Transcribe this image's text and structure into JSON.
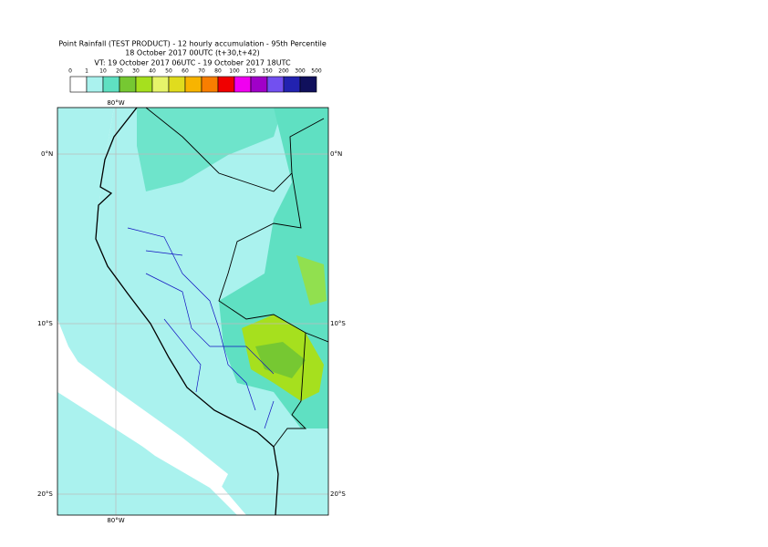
{
  "header": {
    "title": "Point Rainfall (TEST PRODUCT) - 12 hourly accumulation - 95th Percentile",
    "base_time": "18 October 2017 00UTC (t+30,t+42)",
    "valid_time": "VT: 19 October 2017 06UTC - 19 October 2017 18UTC"
  },
  "legend": {
    "labels": [
      "0",
      "1",
      "10",
      "20",
      "30",
      "40",
      "50",
      "60",
      "70",
      "80",
      "100",
      "125",
      "150",
      "200",
      "300",
      "500"
    ],
    "colors": [
      "#ffffff",
      "#aaf2ee",
      "#5fe0c2",
      "#76c832",
      "#a6e01e",
      "#e6f46a",
      "#e0dc1e",
      "#f8b400",
      "#f87e00",
      "#f00000",
      "#f000f0",
      "#a000c8",
      "#7250f0",
      "#2222b0",
      "#10105c"
    ]
  },
  "axes": {
    "lon_labels": [
      "80°W"
    ],
    "lat_labels": [
      "0°N",
      "10°S",
      "20°S"
    ]
  }
}
